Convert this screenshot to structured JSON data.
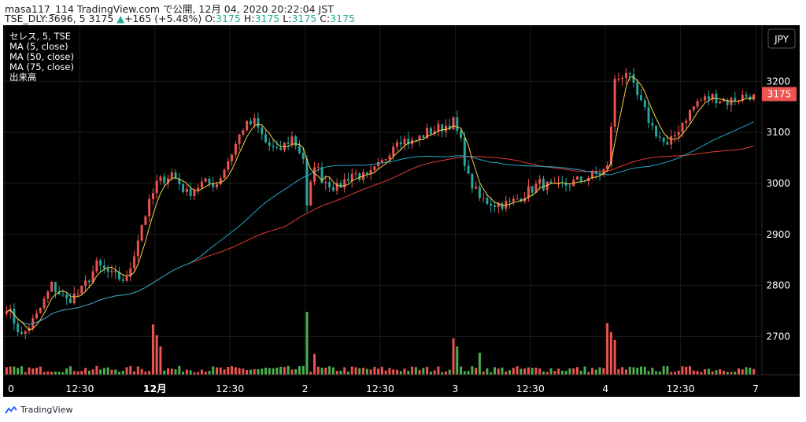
{
  "header": {
    "line1": "masa117_114 TradingView.com で公開, 12月 04, 2020 20:22:04 JST",
    "symbol_prefix": "TSE_DLY:3696, 5",
    "last": "3175",
    "change": "+165 (+5.48%)",
    "o_label": "O:",
    "o_value": "3175",
    "h_label": "H:",
    "h_value": "3175",
    "l_label": "L:",
    "l_value": "3175",
    "c_label": "C:",
    "c_value": "3175"
  },
  "legend": {
    "symbol": "セレス, 5, TSE",
    "ma5": "MA (5, close)",
    "ma50": "MA (50, close)",
    "ma75": "MA (75, close)",
    "volume": "出来高"
  },
  "currency_button": "JPY",
  "price_badge": "3175",
  "footer": {
    "brand": "TradingView"
  },
  "colors": {
    "background": "#000000",
    "up": "#ef5350",
    "down": "#26a69a",
    "vol_up": "#ef5350",
    "vol_down": "#4caf50",
    "ma5": "#f5d04a",
    "ma50": "#1fa7c8",
    "ma75": "#e53935",
    "grid": "#1c1c1c",
    "axis_text": "#ffffff"
  },
  "chart_data": {
    "type": "candlestick",
    "y_axis": {
      "ticks": [
        2700,
        2800,
        2900,
        3000,
        3100,
        3200
      ],
      "range": [
        2625,
        3310
      ]
    },
    "x_axis": {
      "ticks": [
        {
          "label": "0",
          "bar": 0
        },
        {
          "label": "12:30",
          "bar": 20
        },
        {
          "label": "12月",
          "bar": 40
        },
        {
          "label": "12:30",
          "bar": 60
        },
        {
          "label": "2",
          "bar": 80
        },
        {
          "label": "12:30",
          "bar": 100
        },
        {
          "label": "3",
          "bar": 120
        },
        {
          "label": "12:30",
          "bar": 140
        },
        {
          "label": "4",
          "bar": 160
        },
        {
          "label": "12:30",
          "bar": 180
        },
        {
          "label": "7",
          "bar": 200
        }
      ],
      "bar_count": 200
    },
    "anchors": [
      [
        0,
        2760
      ],
      [
        4,
        2700
      ],
      [
        8,
        2740
      ],
      [
        12,
        2800
      ],
      [
        16,
        2770
      ],
      [
        20,
        2790
      ],
      [
        24,
        2840
      ],
      [
        28,
        2820
      ],
      [
        32,
        2810
      ],
      [
        36,
        2920
      ],
      [
        40,
        3000
      ],
      [
        44,
        3020
      ],
      [
        48,
        2980
      ],
      [
        52,
        3000
      ],
      [
        56,
        3000
      ],
      [
        60,
        3060
      ],
      [
        63,
        3110
      ],
      [
        66,
        3120
      ],
      [
        69,
        3080
      ],
      [
        72,
        3060
      ],
      [
        76,
        3090
      ],
      [
        79,
        3050
      ],
      [
        80,
        2950
      ],
      [
        82,
        3040
      ],
      [
        84,
        3010
      ],
      [
        88,
        2990
      ],
      [
        92,
        3020
      ],
      [
        96,
        3010
      ],
      [
        100,
        3040
      ],
      [
        104,
        3090
      ],
      [
        108,
        3080
      ],
      [
        112,
        3100
      ],
      [
        116,
        3110
      ],
      [
        119,
        3120
      ],
      [
        121,
        3080
      ],
      [
        123,
        3010
      ],
      [
        126,
        2970
      ],
      [
        130,
        2960
      ],
      [
        134,
        2960
      ],
      [
        138,
        2980
      ],
      [
        142,
        3000
      ],
      [
        146,
        2990
      ],
      [
        150,
        3000
      ],
      [
        154,
        3010
      ],
      [
        158,
        3020
      ],
      [
        160,
        3030
      ],
      [
        162,
        3200
      ],
      [
        165,
        3220
      ],
      [
        168,
        3170
      ],
      [
        172,
        3110
      ],
      [
        176,
        3070
      ],
      [
        180,
        3120
      ],
      [
        184,
        3160
      ],
      [
        188,
        3170
      ],
      [
        192,
        3160
      ],
      [
        196,
        3170
      ],
      [
        199,
        3175
      ]
    ],
    "volume_spikes": [
      [
        39,
        0.8
      ],
      [
        40,
        0.63
      ],
      [
        41,
        0.45
      ],
      [
        80,
        1.0
      ],
      [
        82,
        0.33
      ],
      [
        119,
        0.58
      ],
      [
        120,
        0.45
      ],
      [
        126,
        0.35
      ],
      [
        160,
        0.82
      ],
      [
        161,
        0.68
      ],
      [
        162,
        0.55
      ]
    ],
    "series": [
      {
        "name": "MA (5, close)",
        "period": 5
      },
      {
        "name": "MA (50, close)",
        "period": 50
      },
      {
        "name": "MA (75, close)",
        "period": 75
      }
    ]
  }
}
